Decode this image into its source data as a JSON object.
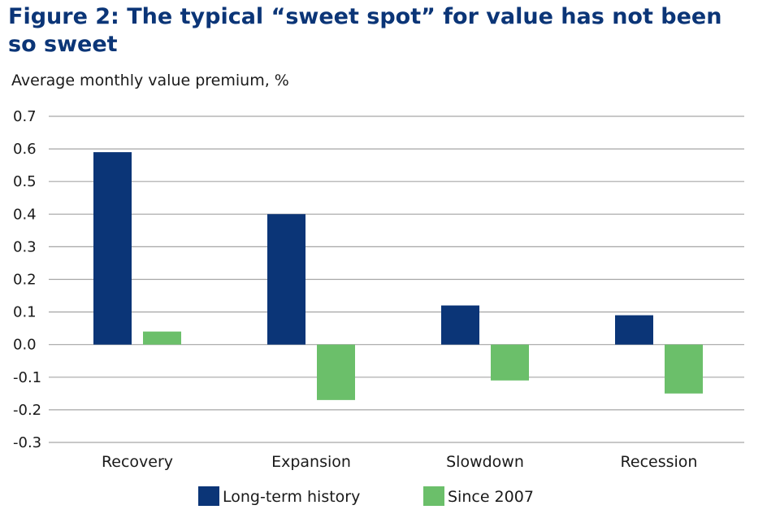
{
  "title": "Figure 2: The typical “sweet spot” for value has not been so sweet",
  "chart_data": {
    "type": "bar",
    "ylabel": "Average monthly value premium, %",
    "xlabel": "",
    "categories": [
      "Recovery",
      "Expansion",
      "Slowdown",
      "Recession"
    ],
    "series": [
      {
        "name": "Long-term history",
        "color": "#0b3577",
        "values": [
          0.59,
          0.4,
          0.12,
          0.09
        ]
      },
      {
        "name": "Since 2007",
        "color": "#6bbf6a",
        "values": [
          0.04,
          -0.17,
          -0.11,
          -0.15
        ]
      }
    ],
    "ylim": [
      -0.3,
      0.7
    ],
    "yticks": [
      "0.7",
      "0.6",
      "0.5",
      "0.4",
      "0.3",
      "0.2",
      "0.1",
      "0.0",
      "-0.1",
      "-0.2",
      "-0.3"
    ],
    "grid": true,
    "legend_position": "bottom"
  }
}
